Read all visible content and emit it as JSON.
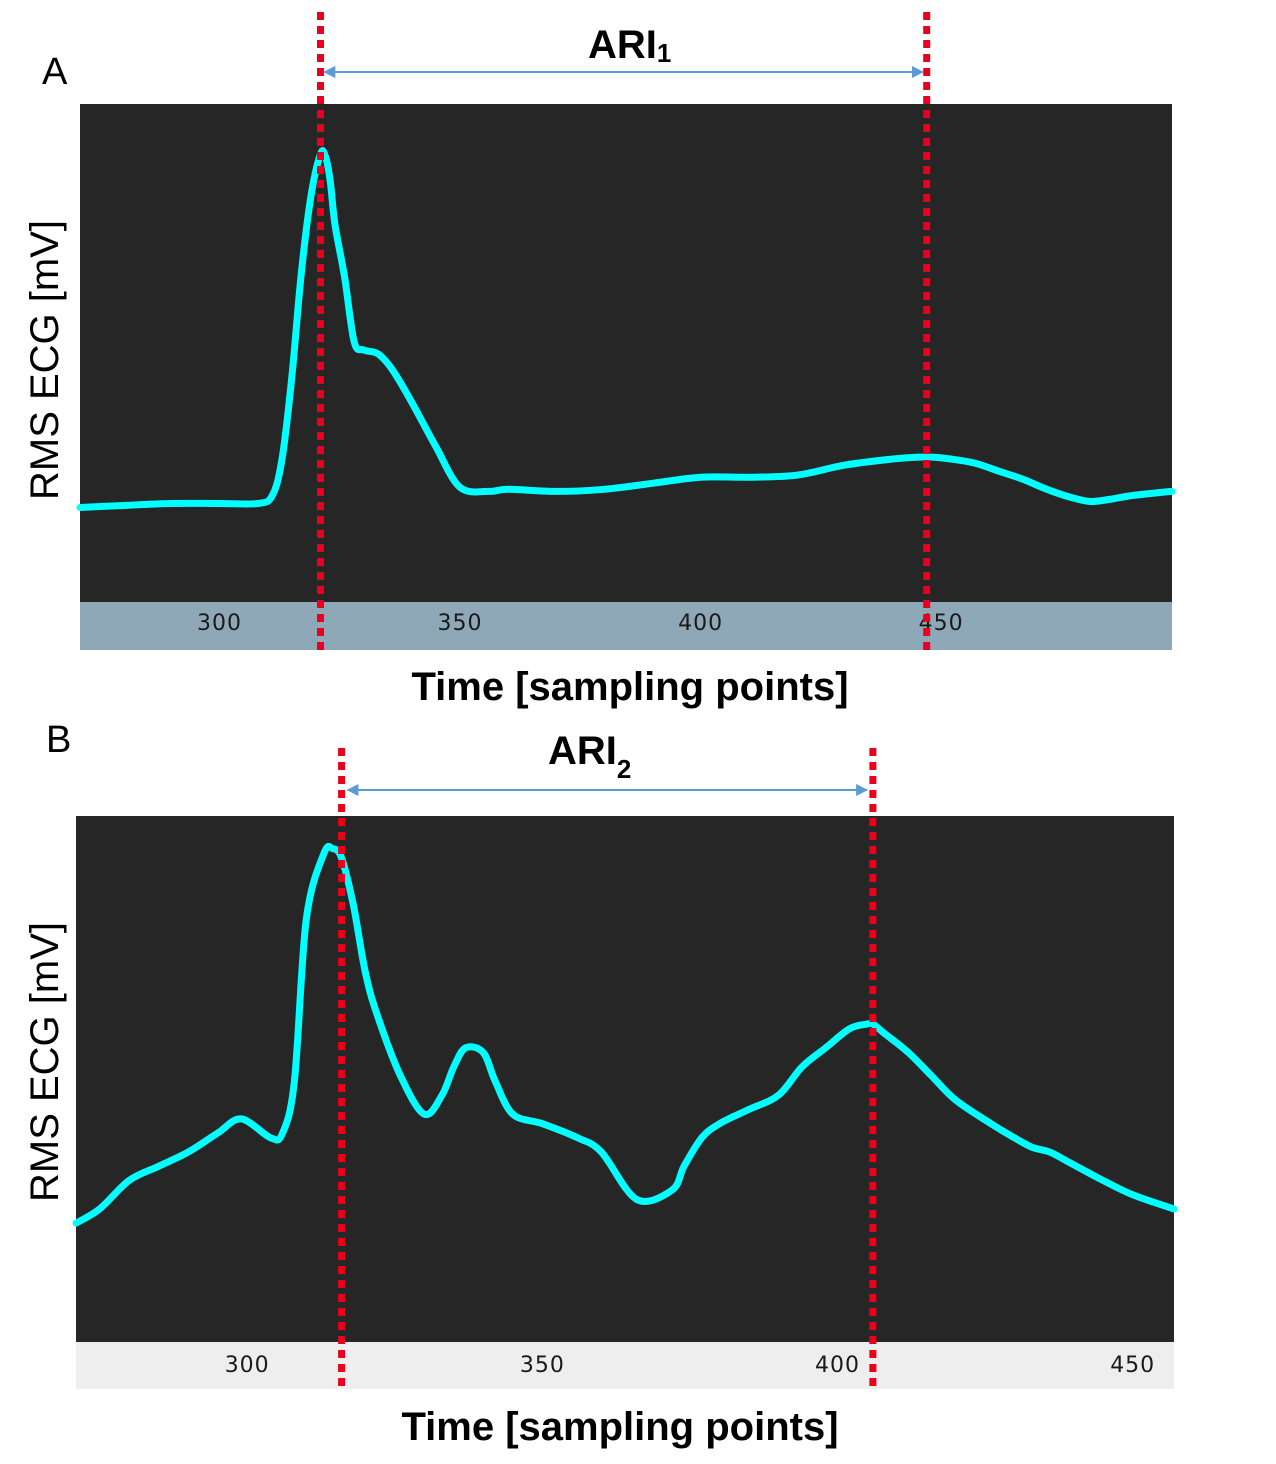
{
  "chart_data": [
    {
      "type": "line",
      "panel_label": "A",
      "interval_label": "ARI",
      "interval_subscript": "1",
      "xlabel": "Time [sampling points]",
      "ylabel": "RMS ECG [mV]",
      "x_ticks": [
        300,
        350,
        400,
        450
      ],
      "xlim": [
        271,
        498
      ],
      "y_ticks_shown": false,
      "ylim": [
        0,
        1
      ],
      "grid": false,
      "background": "#262626",
      "axis_strip_color": "#8fa8b8",
      "line_color": "#00ffff",
      "marker_color": "#e8001c",
      "markers_x": [
        321,
        447
      ],
      "series": [
        {
          "x": [
            271,
            280,
            290,
            300,
            308,
            311,
            313,
            315,
            317,
            319,
            321,
            322,
            323,
            324,
            326,
            328,
            330,
            333,
            336,
            340,
            345,
            350,
            356,
            360,
            370,
            380,
            390,
            400,
            410,
            420,
            430,
            440,
            447,
            452,
            457,
            462,
            467,
            472,
            477,
            481,
            485,
            490,
            498
          ],
          "y": [
            0.12,
            0.125,
            0.13,
            0.13,
            0.13,
            0.15,
            0.24,
            0.44,
            0.7,
            0.89,
            0.995,
            0.99,
            0.93,
            0.82,
            0.69,
            0.53,
            0.51,
            0.5,
            0.46,
            0.38,
            0.27,
            0.17,
            0.16,
            0.165,
            0.16,
            0.165,
            0.18,
            0.195,
            0.195,
            0.2,
            0.225,
            0.24,
            0.245,
            0.24,
            0.23,
            0.21,
            0.19,
            0.165,
            0.145,
            0.135,
            0.14,
            0.15,
            0.16
          ]
        }
      ]
    },
    {
      "type": "line",
      "panel_label": "B",
      "interval_label": "ARI",
      "interval_subscript": "2",
      "xlabel": "Time [sampling points]",
      "ylabel": "RMS ECG [mV]",
      "x_ticks": [
        300,
        350,
        400,
        450
      ],
      "xlim": [
        271,
        457
      ],
      "y_ticks_shown": false,
      "ylim": [
        0,
        1
      ],
      "grid": false,
      "background": "#262626",
      "axis_strip_color": "#eeeeee",
      "line_color": "#00ffff",
      "marker_color": "#e8001c",
      "markers_x": [
        316,
        406
      ],
      "series": [
        {
          "x": [
            271,
            275,
            280,
            285,
            290,
            295,
            299,
            304,
            306,
            308,
            310,
            313,
            314.5,
            316,
            318,
            320,
            322,
            326,
            330,
            333,
            335,
            337,
            340,
            342,
            345,
            350,
            356,
            360,
            366,
            372,
            374,
            377,
            380,
            385,
            390,
            394,
            398,
            402,
            405,
            406,
            408,
            412,
            416,
            420,
            426,
            430,
            433,
            436,
            439,
            442,
            445,
            450,
            457
          ],
          "y": [
            0.2,
            0.23,
            0.29,
            0.32,
            0.35,
            0.39,
            0.42,
            0.38,
            0.39,
            0.5,
            0.84,
            0.98,
            0.99,
            0.97,
            0.87,
            0.73,
            0.64,
            0.51,
            0.43,
            0.47,
            0.53,
            0.57,
            0.56,
            0.5,
            0.43,
            0.41,
            0.38,
            0.35,
            0.25,
            0.27,
            0.32,
            0.38,
            0.41,
            0.44,
            0.47,
            0.53,
            0.57,
            0.61,
            0.62,
            0.62,
            0.6,
            0.56,
            0.51,
            0.46,
            0.41,
            0.38,
            0.36,
            0.35,
            0.33,
            0.31,
            0.29,
            0.26,
            0.23
          ]
        }
      ]
    }
  ]
}
